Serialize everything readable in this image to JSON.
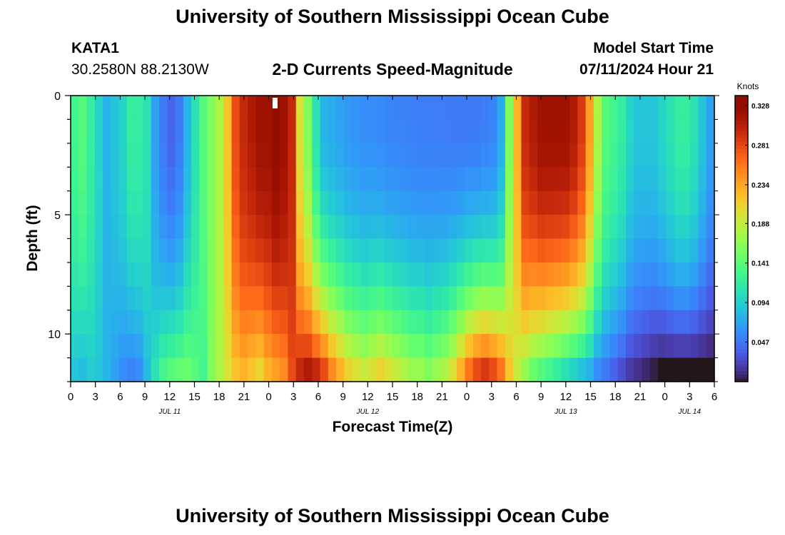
{
  "header": {
    "title": "University of Southern Mississippi Ocean Cube",
    "station_id": "KATA1",
    "station_coords": "30.2580N  88.2130W",
    "variable_title": "2-D Currents Speed-Magnitude",
    "model_start_label": "Model Start Time",
    "model_start_value": "07/11/2024 Hour 21"
  },
  "footer": {
    "title": "University of Southern Mississippi Ocean Cube"
  },
  "chart_data": {
    "type": "heatmap",
    "xlabel": "Forecast Time(Z)",
    "ylabel": "Depth (ft)",
    "x_tick_labels": [
      "0",
      "3",
      "6",
      "9",
      "12",
      "15",
      "18",
      "21",
      "0",
      "3",
      "6",
      "9",
      "12",
      "15",
      "18",
      "21",
      "0",
      "3",
      "6",
      "9",
      "12",
      "15",
      "18",
      "21",
      "0",
      "3",
      "6"
    ],
    "date_labels": [
      "JUL 11",
      "JUL 12",
      "JUL 13",
      "JUL 14"
    ],
    "date_label_ticks": [
      4,
      12,
      20,
      25
    ],
    "x_range_hours": [
      0,
      78
    ],
    "y_ticks": [
      0,
      5,
      10
    ],
    "y_range_ft": [
      0,
      12
    ],
    "y_inverted": true,
    "colorbar": {
      "label": "Knots",
      "tick_labels": [
        "0.328",
        "0.281",
        "0.234",
        "0.188",
        "0.141",
        "0.094",
        "0.047"
      ],
      "tick_values": [
        0.328,
        0.281,
        0.234,
        0.188,
        0.141,
        0.094,
        0.047
      ],
      "range": [
        0,
        0.34
      ],
      "colormap": "turbo"
    },
    "time_profile_values": [
      0.13,
      0.14,
      0.12,
      0.1,
      0.08,
      0.09,
      0.1,
      0.12,
      0.12,
      0.11,
      0.07,
      0.05,
      0.04,
      0.05,
      0.08,
      0.11,
      0.14,
      0.16,
      0.18,
      0.22,
      0.28,
      0.3,
      0.31,
      0.32,
      0.32,
      0.33,
      0.32,
      0.3,
      0.2,
      0.16,
      0.11,
      0.08,
      0.075,
      0.07,
      0.065,
      0.063,
      0.06,
      0.06,
      0.058,
      0.056,
      0.055,
      0.054,
      0.053,
      0.052,
      0.052,
      0.052,
      0.051,
      0.05,
      0.05,
      0.05,
      0.05,
      0.052,
      0.055,
      0.075,
      0.16,
      0.23,
      0.3,
      0.31,
      0.32,
      0.32,
      0.32,
      0.32,
      0.31,
      0.29,
      0.24,
      0.18,
      0.14,
      0.13,
      0.12,
      0.1,
      0.09,
      0.09,
      0.09,
      0.1,
      0.11,
      0.12,
      0.12,
      0.11,
      0.09,
      0.07
    ],
    "depth_profile_values": [
      0.09,
      0.085,
      0.095,
      0.09,
      0.08,
      0.07,
      0.06,
      0.055,
      0.06,
      0.085,
      0.11,
      0.13,
      0.14,
      0.145,
      0.15,
      0.14,
      0.13,
      0.16,
      0.18,
      0.2,
      0.22,
      0.23,
      0.22,
      0.21,
      0.23,
      0.24,
      0.25,
      0.28,
      0.3,
      0.31,
      0.3,
      0.28,
      0.25,
      0.23,
      0.21,
      0.2,
      0.19,
      0.2,
      0.21,
      0.2,
      0.19,
      0.18,
      0.17,
      0.17,
      0.16,
      0.17,
      0.18,
      0.2,
      0.23,
      0.26,
      0.28,
      0.29,
      0.28,
      0.26,
      0.22,
      0.19,
      0.17,
      0.15,
      0.14,
      0.13,
      0.12,
      0.11,
      0.1,
      0.09,
      0.08,
      0.06,
      0.05,
      0.04,
      0.03,
      0.02,
      0.015,
      0.01,
      0.005,
      0.0,
      0.0,
      0.0,
      0.0,
      0.0,
      0.0,
      0.0
    ],
    "colors": {
      "background": "#ffffff",
      "axis": "#000000",
      "missing_cell": "#ffffff"
    }
  }
}
